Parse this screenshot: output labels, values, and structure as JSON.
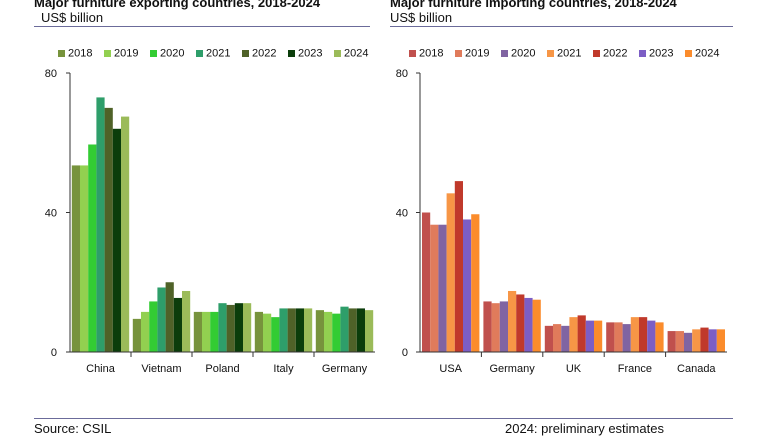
{
  "footer": {
    "source": "Source: CSIL",
    "note": "2024: preliminary estimates"
  },
  "chart_data": [
    {
      "type": "bar",
      "title": "Major furniture exporting countries, 2018-2024",
      "ylabel": "US$ billion",
      "categories": [
        "China",
        "Vietnam",
        "Poland",
        "Italy",
        "Germany"
      ],
      "ylim": [
        0,
        80
      ],
      "yticks": [
        0,
        40,
        80
      ],
      "grid": false,
      "legend": "top",
      "series": [
        {
          "name": "2018",
          "color": "#77933c",
          "values": [
            53.5,
            9.5,
            11.5,
            11.5,
            12.0
          ]
        },
        {
          "name": "2019",
          "color": "#92d050",
          "values": [
            53.5,
            11.5,
            11.5,
            11.0,
            11.5
          ]
        },
        {
          "name": "2020",
          "color": "#33cc33",
          "values": [
            59.5,
            14.5,
            11.5,
            10.0,
            11.0
          ]
        },
        {
          "name": "2021",
          "color": "#2e9e6a",
          "values": [
            73.0,
            18.5,
            14.0,
            12.5,
            13.0
          ]
        },
        {
          "name": "2022",
          "color": "#4f6228",
          "values": [
            70.0,
            20.0,
            13.5,
            12.5,
            12.5
          ]
        },
        {
          "name": "2023",
          "color": "#0b3d0b",
          "values": [
            64.0,
            15.5,
            14.0,
            12.5,
            12.5
          ]
        },
        {
          "name": "2024",
          "color": "#9bbb59",
          "values": [
            67.5,
            17.5,
            14.0,
            12.5,
            12.0
          ]
        }
      ]
    },
    {
      "type": "bar",
      "title": "Major furniture importing countries, 2018-2024",
      "ylabel": "US$ billion",
      "categories": [
        "USA",
        "Germany",
        "UK",
        "France",
        "Canada"
      ],
      "ylim": [
        0,
        80
      ],
      "yticks": [
        0,
        40,
        80
      ],
      "grid": false,
      "legend": "top",
      "series": [
        {
          "name": "2018",
          "color": "#c0504d",
          "values": [
            40.0,
            14.5,
            7.5,
            8.5,
            6.0
          ]
        },
        {
          "name": "2019",
          "color": "#e07b5b",
          "values": [
            36.5,
            14.0,
            8.0,
            8.5,
            6.0
          ]
        },
        {
          "name": "2020",
          "color": "#8064a2",
          "values": [
            36.5,
            14.5,
            7.5,
            8.0,
            5.5
          ]
        },
        {
          "name": "2021",
          "color": "#f79646",
          "values": [
            45.5,
            17.5,
            10.0,
            10.0,
            6.5
          ]
        },
        {
          "name": "2022",
          "color": "#c0392b",
          "values": [
            49.0,
            16.5,
            10.5,
            10.0,
            7.0
          ]
        },
        {
          "name": "2023",
          "color": "#7c5ec5",
          "values": [
            38.0,
            15.5,
            9.0,
            9.0,
            6.5
          ]
        },
        {
          "name": "2024",
          "color": "#fb8c2c",
          "values": [
            39.5,
            15.0,
            9.0,
            8.5,
            6.5
          ]
        }
      ]
    }
  ]
}
